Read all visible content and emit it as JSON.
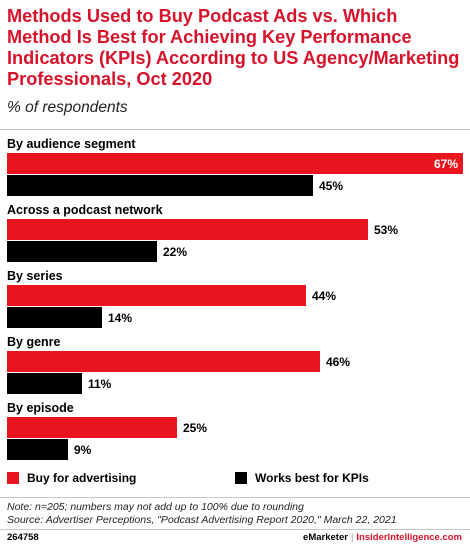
{
  "title": "Methods Used to Buy Podcast Ads vs. Which Method Is Best for Achieving Key Performance Indicators (KPIs) According to US Agency/Marketing Professionals, Oct 2020",
  "subtitle": "% of respondents",
  "colors": {
    "accent": "#d7132b",
    "series_buy": "#e8141e",
    "series_kpi": "#000000"
  },
  "chart_data": {
    "type": "bar",
    "orientation": "horizontal",
    "categories": [
      "By audience segment",
      "Across a podcast network",
      "By series",
      "By genre",
      "By episode"
    ],
    "series": [
      {
        "name": "Buy for advertising",
        "values": [
          67,
          53,
          44,
          46,
          25
        ]
      },
      {
        "name": "Works best for KPIs",
        "values": [
          45,
          22,
          14,
          11,
          9
        ]
      }
    ],
    "value_suffix": "%",
    "xlim": [
      0,
      67
    ],
    "grid": false,
    "legend": "bottom"
  },
  "notes": {
    "note": "Note: n=205; numbers may not add up to 100% due to rounding",
    "source": "Source: Advertiser Perceptions, \"Podcast Advertising Report 2020,\" March 22, 2021"
  },
  "footer": {
    "id": "264758",
    "brand": "eMarketer",
    "divider": "|",
    "brand2": "InsiderIntelligence.com"
  }
}
